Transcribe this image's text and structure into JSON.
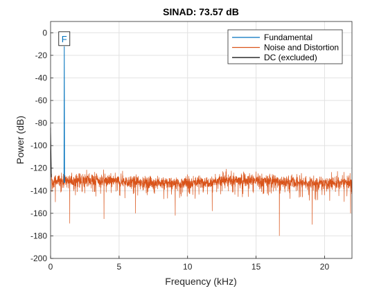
{
  "chart_data": {
    "type": "line",
    "title": "SINAD:  73.57 dB",
    "xlabel": "Frequency (kHz)",
    "ylabel": "Power (dB)",
    "xlim": [
      0,
      22
    ],
    "ylim": [
      -200,
      10
    ],
    "xticks": [
      0,
      5,
      10,
      15,
      20
    ],
    "xtick_labels": [
      "0",
      "5",
      "10",
      "15",
      "20"
    ],
    "yticks": [
      0,
      -20,
      -40,
      -60,
      -80,
      -100,
      -120,
      -140,
      -160,
      -180,
      -200
    ],
    "ytick_labels": [
      "0",
      "-20",
      "-40",
      "-60",
      "-80",
      "-100",
      "-120",
      "-140",
      "-160",
      "-180",
      "-200"
    ],
    "grid": true,
    "legend_position": "top-right",
    "series": [
      {
        "name": "Fundamental",
        "color": "#0072BD",
        "x": [
          0.98,
          1.0,
          1.02
        ],
        "y": [
          -133,
          -12,
          -133
        ]
      },
      {
        "name": "Noise and Distortion",
        "color": "#D95319",
        "x_range": [
          0.06,
          22
        ],
        "baseline_db": -132,
        "envelope_top_db": -118,
        "envelope_bottom_db": -145,
        "notable_dips": [
          {
            "x": 0.35,
            "y": -150
          },
          {
            "x": 1.4,
            "y": -169
          },
          {
            "x": 3.9,
            "y": -165
          },
          {
            "x": 6.2,
            "y": -160
          },
          {
            "x": 9.1,
            "y": -162
          },
          {
            "x": 11.8,
            "y": -158
          },
          {
            "x": 16.7,
            "y": -180
          },
          {
            "x": 19.1,
            "y": -170
          },
          {
            "x": 21.9,
            "y": -160
          }
        ]
      },
      {
        "name": "DC (excluded)",
        "color": "#000000",
        "x": [
          0,
          0.06
        ],
        "y": [
          -84,
          -128
        ]
      }
    ],
    "annotations": [
      {
        "text": "F",
        "x": 1.0,
        "y": -12,
        "color": "#0072BD"
      }
    ]
  }
}
